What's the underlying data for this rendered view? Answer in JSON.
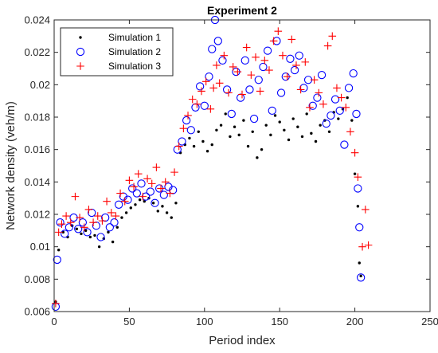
{
  "chart_data": {
    "type": "scatter",
    "title": "Experiment 2",
    "xlabel": "Period index",
    "ylabel": "Network density (veh/m)",
    "xlim": [
      0,
      250
    ],
    "ylim": [
      0.006,
      0.024
    ],
    "xticks": [
      0,
      50,
      100,
      150,
      200,
      250
    ],
    "xtick_labels": [
      "0",
      "50",
      "100",
      "150",
      "200",
      "250"
    ],
    "yticks": [
      0.006,
      0.008,
      0.01,
      0.012,
      0.014,
      0.016,
      0.018,
      0.02,
      0.022,
      0.024
    ],
    "ytick_labels": [
      "0.006",
      "0.008",
      "0.01",
      "0.012",
      "0.014",
      "0.016",
      "0.018",
      "0.02",
      "0.022",
      "0.024"
    ],
    "legend_position": "top-left",
    "grid": false,
    "series": [
      {
        "name": "Simulation 1",
        "marker": "dot",
        "color": "#000000",
        "x": [
          1,
          3,
          6,
          9,
          12,
          15,
          18,
          21,
          24,
          27,
          30,
          33,
          36,
          39,
          42,
          45,
          48,
          51,
          54,
          57,
          60,
          63,
          66,
          69,
          72,
          75,
          78,
          81,
          84,
          87,
          90,
          93,
          96,
          99,
          102,
          105,
          108,
          111,
          114,
          117,
          120,
          123,
          126,
          129,
          132,
          135,
          138,
          141,
          144,
          147,
          150,
          153,
          156,
          159,
          162,
          165,
          168,
          171,
          174,
          177,
          180,
          183,
          186,
          189,
          192,
          195,
          198,
          200,
          202,
          203,
          204
        ],
        "y": [
          0.0066,
          0.0098,
          0.0109,
          0.0106,
          0.0113,
          0.0111,
          0.0108,
          0.011,
          0.0106,
          0.0107,
          0.01,
          0.0105,
          0.0109,
          0.0103,
          0.0112,
          0.0118,
          0.0121,
          0.0124,
          0.0126,
          0.0129,
          0.0128,
          0.013,
          0.0127,
          0.0122,
          0.0125,
          0.0121,
          0.0118,
          0.0127,
          0.0158,
          0.0163,
          0.0167,
          0.0162,
          0.0171,
          0.0165,
          0.0159,
          0.0163,
          0.0172,
          0.0175,
          0.0182,
          0.0168,
          0.0174,
          0.0169,
          0.0178,
          0.0162,
          0.0171,
          0.0155,
          0.016,
          0.0175,
          0.0169,
          0.0181,
          0.0177,
          0.0172,
          0.0166,
          0.0179,
          0.0174,
          0.0168,
          0.0182,
          0.017,
          0.0165,
          0.0175,
          0.0178,
          0.0171,
          0.0183,
          0.0179,
          0.0185,
          0.0192,
          0.0178,
          0.0145,
          0.0125,
          0.009,
          0.0082
        ]
      },
      {
        "name": "Simulation 2",
        "marker": "circle",
        "color": "#0000ff",
        "x": [
          1,
          2,
          4,
          7,
          10,
          13,
          16,
          19,
          22,
          25,
          28,
          31,
          34,
          37,
          40,
          43,
          46,
          49,
          52,
          55,
          58,
          61,
          64,
          67,
          70,
          73,
          76,
          79,
          82,
          85,
          88,
          91,
          94,
          97,
          100,
          103,
          105,
          107,
          109,
          112,
          115,
          118,
          121,
          124,
          127,
          130,
          133,
          136,
          139,
          142,
          145,
          148,
          151,
          154,
          157,
          160,
          163,
          166,
          169,
          172,
          175,
          178,
          181,
          184,
          187,
          190,
          193,
          196,
          199,
          201,
          202,
          203,
          204
        ],
        "y": [
          0.0063,
          0.0092,
          0.0115,
          0.0108,
          0.0112,
          0.0118,
          0.0111,
          0.0115,
          0.0109,
          0.0121,
          0.0113,
          0.0106,
          0.0118,
          0.0112,
          0.0115,
          0.0126,
          0.0131,
          0.0129,
          0.0136,
          0.0133,
          0.0139,
          0.0131,
          0.0134,
          0.0127,
          0.0136,
          0.0132,
          0.0137,
          0.0135,
          0.016,
          0.0165,
          0.0178,
          0.0172,
          0.0186,
          0.0199,
          0.0187,
          0.0205,
          0.0222,
          0.024,
          0.0227,
          0.0215,
          0.0197,
          0.0182,
          0.0208,
          0.0192,
          0.0215,
          0.0197,
          0.0179,
          0.0203,
          0.0211,
          0.0221,
          0.0184,
          0.0227,
          0.0195,
          0.0205,
          0.0216,
          0.0209,
          0.0218,
          0.0198,
          0.0203,
          0.0187,
          0.0192,
          0.0206,
          0.0176,
          0.0181,
          0.0191,
          0.0184,
          0.0163,
          0.0198,
          0.0207,
          0.0182,
          0.0136,
          0.0112,
          0.0081
        ]
      },
      {
        "name": "Simulation 3",
        "marker": "plus",
        "color": "#ff0000",
        "x": [
          1,
          3,
          5,
          8,
          11,
          14,
          17,
          20,
          23,
          26,
          29,
          32,
          35,
          38,
          41,
          44,
          47,
          50,
          53,
          56,
          59,
          62,
          65,
          68,
          71,
          74,
          77,
          80,
          83,
          86,
          89,
          92,
          95,
          98,
          101,
          104,
          106,
          108,
          110,
          113,
          116,
          119,
          122,
          125,
          128,
          131,
          134,
          137,
          140,
          143,
          146,
          149,
          152,
          155,
          158,
          161,
          164,
          167,
          170,
          173,
          176,
          179,
          182,
          185,
          188,
          191,
          194,
          197,
          200,
          202,
          205,
          207,
          209
        ],
        "y": [
          0.0065,
          0.0109,
          0.0114,
          0.0119,
          0.0115,
          0.0131,
          0.0118,
          0.0112,
          0.0123,
          0.0115,
          0.0119,
          0.0116,
          0.0128,
          0.0121,
          0.0119,
          0.0133,
          0.0128,
          0.0141,
          0.0137,
          0.0145,
          0.0131,
          0.0142,
          0.0139,
          0.0149,
          0.0136,
          0.014,
          0.0133,
          0.0146,
          0.0162,
          0.0173,
          0.0181,
          0.0191,
          0.0188,
          0.0196,
          0.0202,
          0.0185,
          0.0198,
          0.0212,
          0.0201,
          0.0218,
          0.0195,
          0.0211,
          0.0208,
          0.0194,
          0.0223,
          0.0206,
          0.0217,
          0.0196,
          0.0215,
          0.0209,
          0.0227,
          0.0233,
          0.0218,
          0.0205,
          0.0228,
          0.0212,
          0.0197,
          0.0214,
          0.0186,
          0.0203,
          0.0195,
          0.0188,
          0.0224,
          0.023,
          0.0198,
          0.0192,
          0.0186,
          0.0171,
          0.0158,
          0.0143,
          0.01,
          0.0123,
          0.0101
        ]
      }
    ]
  }
}
